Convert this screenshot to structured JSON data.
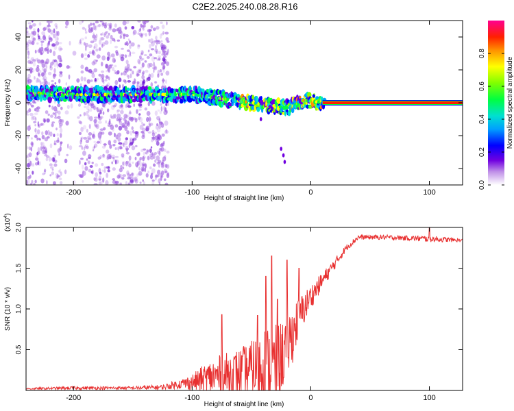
{
  "title": "C2E2.2025.240.08.28.R16",
  "chart_data": [
    {
      "type": "heatmap",
      "title": "C2E2.2025.240.08.28.R16",
      "xlabel": "Height of straight line (km)",
      "ylabel": "Frequency (Hz)",
      "xlim": [
        -240,
        128
      ],
      "ylim": [
        -50,
        50
      ],
      "xticks": [
        -200,
        -100,
        0,
        100
      ],
      "xtick_labels": [
        "-200",
        "-100",
        "0",
        "100"
      ],
      "yticks": [
        -40,
        -20,
        0,
        20,
        40
      ],
      "ytick_labels": [
        "-40",
        "-20",
        "0",
        "20",
        "40"
      ],
      "colorbar": {
        "label": "Normalized spectral amplitude",
        "range": [
          0,
          1
        ],
        "ticks": [
          0.0,
          0.2,
          0.4,
          0.6,
          0.8
        ],
        "tick_labels": [
          "0.0",
          "0.2",
          "0.4",
          "0.6",
          "0.8"
        ],
        "colors": [
          "#ffffff",
          "#b070e0",
          "#6000e0",
          "#0000ff",
          "#00b0ff",
          "#00e0c0",
          "#00ff00",
          "#a0ff00",
          "#ffff00",
          "#ffa000",
          "#ff2000",
          "#ff00a0"
        ]
      },
      "ridge_center_hz": [
        [
          -240,
          6
        ],
        [
          -200,
          5
        ],
        [
          -160,
          5
        ],
        [
          -120,
          5
        ],
        [
          -100,
          5
        ],
        [
          -80,
          3
        ],
        [
          -60,
          1
        ],
        [
          -40,
          -1
        ],
        [
          -30,
          -2
        ],
        [
          -20,
          -3
        ],
        [
          -15,
          -2
        ],
        [
          -10,
          0
        ],
        [
          -5,
          2
        ],
        [
          0,
          1
        ],
        [
          10,
          0
        ],
        [
          128,
          0
        ]
      ],
      "stray_points_hz": [
        [
          -42,
          -10
        ],
        [
          -25,
          -28
        ],
        [
          -23,
          -32
        ],
        [
          -22,
          -36
        ]
      ]
    },
    {
      "type": "line",
      "xlabel": "Height of straight line (km)",
      "ylabel": "SNR (10 * v/v)",
      "y_multiplier_label": "(x10",
      "y_multiplier_exp": "4",
      "y_multiplier_close": ")",
      "xlim": [
        -240,
        128
      ],
      "ylim": [
        0,
        2.0
      ],
      "xticks": [
        -200,
        -100,
        0,
        100
      ],
      "xtick_labels": [
        "-200",
        "-100",
        "0",
        "100"
      ],
      "yticks": [
        0.5,
        1.0,
        1.5,
        2.0
      ],
      "ytick_labels": [
        "0.5",
        "1.0",
        "1.5",
        "2.0"
      ],
      "line_color": "#e83030",
      "envelope": {
        "x": [
          -240,
          -200,
          -150,
          -125,
          -110,
          -100,
          -90,
          -80,
          -70,
          -60,
          -50,
          -40,
          -35,
          -30,
          -25,
          -20,
          -15,
          -10,
          0,
          10,
          20,
          30,
          40,
          60,
          80,
          100,
          128
        ],
        "baseline": [
          0.02,
          0.03,
          0.03,
          0.04,
          0.08,
          0.1,
          0.14,
          0.17,
          0.19,
          0.22,
          0.26,
          0.3,
          0.2,
          0.25,
          0.4,
          0.55,
          0.7,
          0.9,
          1.15,
          1.35,
          1.55,
          1.75,
          1.88,
          1.88,
          1.87,
          1.86,
          1.84
        ],
        "noise": [
          0.01,
          0.02,
          0.02,
          0.03,
          0.06,
          0.1,
          0.18,
          0.25,
          0.28,
          0.3,
          0.35,
          0.55,
          0.6,
          0.55,
          0.45,
          0.4,
          0.35,
          0.25,
          0.15,
          0.1,
          0.07,
          0.04,
          0.03,
          0.03,
          0.03,
          0.04,
          0.02
        ]
      },
      "spikes": [
        [
          -75,
          0.93
        ],
        [
          -45,
          0.92
        ],
        [
          -38,
          1.4
        ],
        [
          -33,
          1.65
        ],
        [
          -28,
          1.12
        ],
        [
          -20,
          1.6
        ],
        [
          -10,
          1.5
        ],
        [
          100,
          2.0
        ]
      ]
    }
  ]
}
